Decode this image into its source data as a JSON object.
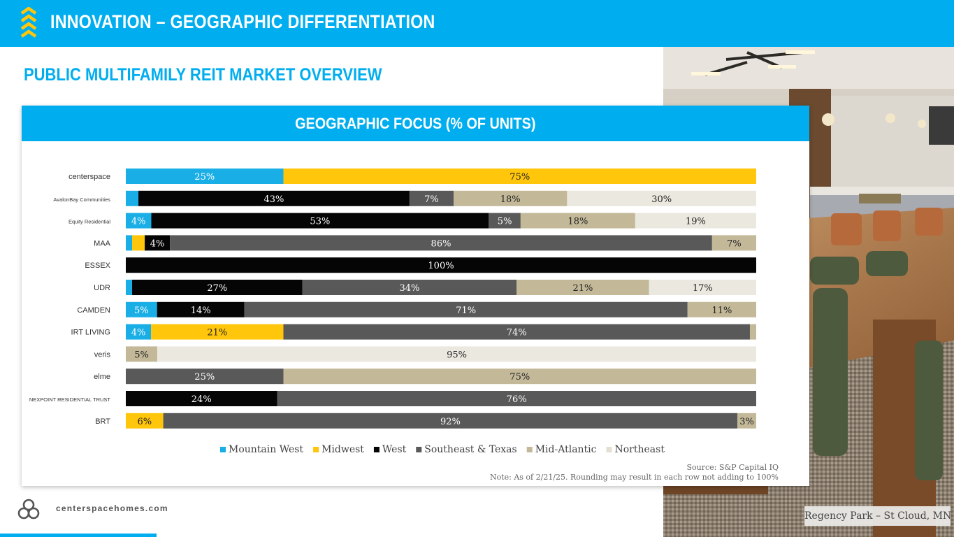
{
  "header": {
    "title": "INNOVATION – GEOGRAPHIC DIFFERENTIATION"
  },
  "subtitle": "PUBLIC MULTIFAMILY REIT MARKET OVERVIEW",
  "photo": {
    "caption": "Regency Park – St Cloud, MN"
  },
  "footer": {
    "url": "centerspacehomes.com"
  },
  "colors": {
    "accent": "#00aeef",
    "Mountain West": "#1aaee6",
    "Midwest": "#ffc60b",
    "West": "#050505",
    "Southeast & Texas": "#595959",
    "Mid-Atlantic": "#c3b898",
    "Northeast": "#ebe8df"
  },
  "chart_data": {
    "type": "bar",
    "orientation": "horizontal",
    "stacked": true,
    "title": "GEOGRAPHIC FOCUS (% OF UNITS)",
    "categories": [
      "centerspace",
      "AvalonBay Communities",
      "Equity Residential",
      "MAA",
      "ESSEX",
      "UDR",
      "CAMDEN",
      "IRT LIVING",
      "veris",
      "elme",
      "NEXPOINT RESIDENTIAL TRUST",
      "BRT"
    ],
    "legend": {
      "position": "bottom"
    },
    "series": [
      {
        "name": "Mountain West",
        "values": [
          25,
          2,
          4,
          1,
          0,
          1,
          5,
          4,
          0,
          0,
          0,
          0
        ],
        "labels": [
          "25%",
          "",
          "4%",
          "",
          "",
          "",
          "5%",
          "4%",
          "",
          "",
          "",
          ""
        ]
      },
      {
        "name": "Midwest",
        "values": [
          75,
          0,
          0,
          2,
          0,
          0,
          0,
          21,
          0,
          0,
          0,
          6
        ],
        "labels": [
          "75%",
          "",
          "",
          "",
          "",
          "",
          "",
          "21%",
          "",
          "",
          "",
          "6%"
        ]
      },
      {
        "name": "West",
        "values": [
          0,
          43,
          53,
          4,
          100,
          27,
          14,
          0,
          0,
          0,
          24,
          0
        ],
        "labels": [
          "",
          "43%",
          "53%",
          "4%",
          "100%",
          "27%",
          "14%",
          "",
          "",
          "",
          "24%",
          ""
        ]
      },
      {
        "name": "Southeast & Texas",
        "values": [
          0,
          7,
          5,
          86,
          0,
          34,
          71,
          74,
          0,
          25,
          76,
          92
        ],
        "labels": [
          "",
          "7%",
          "5%",
          "86%",
          "",
          "34%",
          "71%",
          "74%",
          "",
          "25%",
          "76%",
          "92%"
        ]
      },
      {
        "name": "Mid-Atlantic",
        "values": [
          0,
          18,
          18,
          7,
          0,
          21,
          11,
          1,
          5,
          75,
          0,
          3
        ],
        "labels": [
          "",
          "18%",
          "18%",
          "7%",
          "",
          "21%",
          "11%",
          "",
          "5%",
          "75%",
          "",
          "3%"
        ]
      },
      {
        "name": "Northeast",
        "values": [
          0,
          30,
          19,
          0,
          0,
          17,
          0,
          0,
          95,
          0,
          0,
          0
        ],
        "labels": [
          "",
          "30%",
          "19%",
          "",
          "",
          "17%",
          "",
          "",
          "95%",
          "",
          "",
          ""
        ]
      }
    ],
    "source": "Source: S&P Capital IQ",
    "note": "Note: As of 2/21/25. Rounding may result in each row not adding to 100%"
  }
}
